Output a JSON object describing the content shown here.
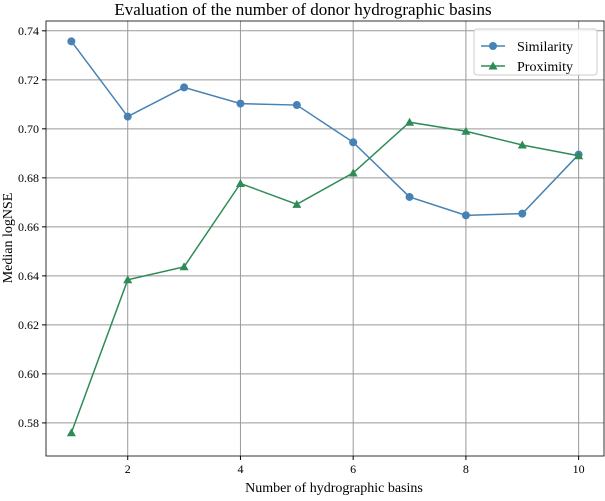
{
  "chart_data": {
    "type": "line",
    "title": "Evaluation of the number of donor hydrographic basins",
    "xlabel": "Number of hydrographic basins",
    "ylabel": "Median logNSE",
    "x": [
      1,
      2,
      3,
      4,
      5,
      6,
      7,
      8,
      9,
      10
    ],
    "xlim": [
      0.55,
      10.45
    ],
    "ylim": [
      0.5665,
      0.744
    ],
    "xticks": [
      2,
      4,
      6,
      8,
      10
    ],
    "xtick_labels": [
      "2",
      "4",
      "6",
      "8",
      "10"
    ],
    "yticks": [
      0.58,
      0.6,
      0.62,
      0.64,
      0.66,
      0.68,
      0.7,
      0.72,
      0.74
    ],
    "ytick_labels": [
      "0.58",
      "0.60",
      "0.62",
      "0.64",
      "0.66",
      "0.68",
      "0.70",
      "0.72",
      "0.74"
    ],
    "grid": true,
    "legend_position": "top-right",
    "series": [
      {
        "name": "Similarity",
        "marker": "circle",
        "color": "#4682b4",
        "values": [
          0.7357,
          0.705,
          0.7169,
          0.7103,
          0.7097,
          0.6945,
          0.6722,
          0.6647,
          0.6654,
          0.6895
        ]
      },
      {
        "name": "Proximity",
        "marker": "triangle",
        "color": "#2e8b57",
        "values": [
          0.576,
          0.6384,
          0.6437,
          0.6777,
          0.6692,
          0.682,
          0.7027,
          0.699,
          0.6934,
          0.689
        ]
      }
    ]
  }
}
